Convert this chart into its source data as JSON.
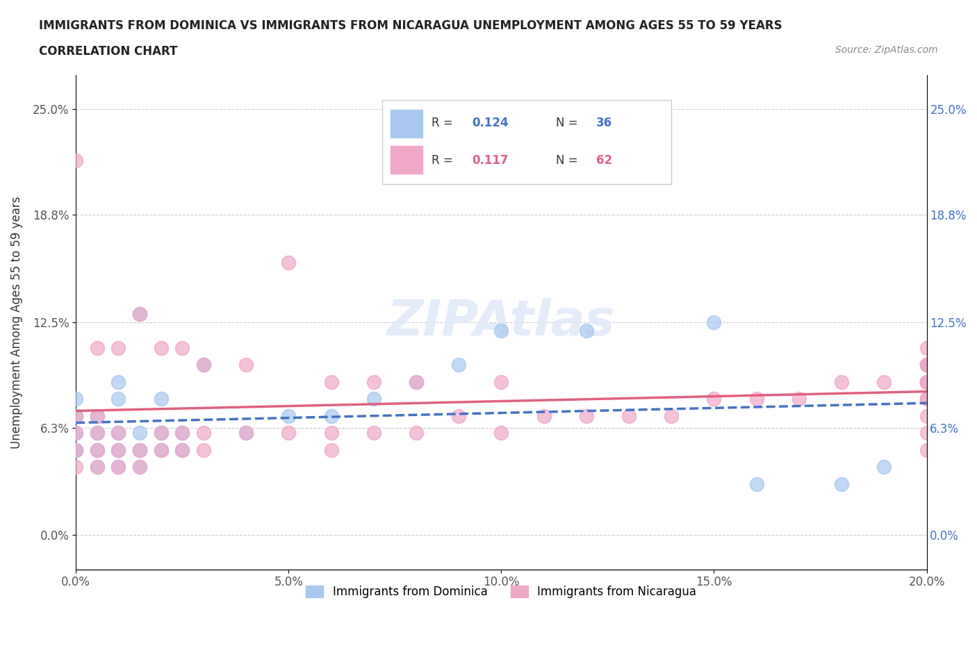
{
  "title_line1": "IMMIGRANTS FROM DOMINICA VS IMMIGRANTS FROM NICARAGUA UNEMPLOYMENT AMONG AGES 55 TO 59 YEARS",
  "title_line2": "CORRELATION CHART",
  "source_text": "Source: ZipAtlas.com",
  "ylabel": "Unemployment Among Ages 55 to 59 years",
  "xlim": [
    0.0,
    0.2
  ],
  "ylim": [
    -0.02,
    0.27
  ],
  "yticks": [
    0.0,
    0.063,
    0.125,
    0.188,
    0.25
  ],
  "ytick_labels": [
    "0.0%",
    "6.3%",
    "12.5%",
    "18.8%",
    "25.0%"
  ],
  "xticks": [
    0.0,
    0.05,
    0.1,
    0.15,
    0.2
  ],
  "xtick_labels": [
    "0.0%",
    "5.0%",
    "10.0%",
    "15.0%",
    "20.0%"
  ],
  "dominica_color": "#a8c8f0",
  "nicaragua_color": "#f0a8c8",
  "dominica_line_color": "#4472c4",
  "nicaragua_line_color": "#e06080",
  "legend_R1": "0.124",
  "legend_N1": "36",
  "legend_R2": "0.117",
  "legend_N2": "62",
  "dominica_label": "Immigrants from Dominica",
  "nicaragua_label": "Immigrants from Nicaragua",
  "watermark": "ZIPAtlas",
  "dominica_x": [
    0.0,
    0.0,
    0.0,
    0.0,
    0.0,
    0.005,
    0.005,
    0.005,
    0.005,
    0.01,
    0.01,
    0.01,
    0.01,
    0.01,
    0.015,
    0.015,
    0.015,
    0.015,
    0.02,
    0.02,
    0.02,
    0.025,
    0.025,
    0.03,
    0.04,
    0.05,
    0.06,
    0.07,
    0.08,
    0.09,
    0.1,
    0.12,
    0.15,
    0.16,
    0.18,
    0.19
  ],
  "dominica_y": [
    0.05,
    0.05,
    0.06,
    0.07,
    0.08,
    0.04,
    0.05,
    0.06,
    0.07,
    0.04,
    0.05,
    0.06,
    0.08,
    0.09,
    0.04,
    0.05,
    0.06,
    0.13,
    0.05,
    0.06,
    0.08,
    0.05,
    0.06,
    0.1,
    0.06,
    0.07,
    0.07,
    0.08,
    0.09,
    0.1,
    0.12,
    0.12,
    0.125,
    0.03,
    0.03,
    0.04
  ],
  "nicaragua_x": [
    0.0,
    0.0,
    0.0,
    0.0,
    0.0,
    0.005,
    0.005,
    0.005,
    0.005,
    0.005,
    0.01,
    0.01,
    0.01,
    0.01,
    0.015,
    0.015,
    0.015,
    0.02,
    0.02,
    0.02,
    0.025,
    0.025,
    0.025,
    0.03,
    0.03,
    0.03,
    0.04,
    0.04,
    0.05,
    0.05,
    0.06,
    0.06,
    0.06,
    0.07,
    0.07,
    0.08,
    0.08,
    0.09,
    0.1,
    0.1,
    0.11,
    0.12,
    0.13,
    0.14,
    0.15,
    0.16,
    0.17,
    0.18,
    0.19,
    0.2,
    0.2,
    0.2,
    0.2,
    0.2,
    0.2,
    0.2,
    0.2,
    0.2,
    0.2,
    0.2,
    0.2,
    0.2
  ],
  "nicaragua_y": [
    0.04,
    0.05,
    0.06,
    0.07,
    0.22,
    0.04,
    0.05,
    0.06,
    0.07,
    0.11,
    0.04,
    0.05,
    0.06,
    0.11,
    0.04,
    0.05,
    0.13,
    0.05,
    0.06,
    0.11,
    0.05,
    0.06,
    0.11,
    0.05,
    0.06,
    0.1,
    0.06,
    0.1,
    0.06,
    0.16,
    0.05,
    0.06,
    0.09,
    0.06,
    0.09,
    0.06,
    0.09,
    0.07,
    0.06,
    0.09,
    0.07,
    0.07,
    0.07,
    0.07,
    0.08,
    0.08,
    0.08,
    0.09,
    0.09,
    0.05,
    0.06,
    0.07,
    0.08,
    0.09,
    0.1,
    0.11,
    0.1,
    0.09,
    0.08,
    0.1,
    0.09,
    0.1
  ]
}
